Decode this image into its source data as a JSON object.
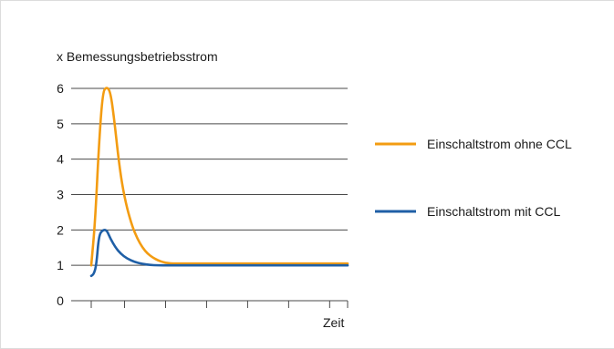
{
  "chart_data": {
    "type": "line",
    "title": "",
    "ylabel": "x Bemessungsbetriebsstrom",
    "xlabel": "Zeit",
    "ylim": [
      0,
      6.2
    ],
    "xlim": [
      0,
      10
    ],
    "y_ticks": [
      0,
      1,
      2,
      3,
      4,
      5,
      6
    ],
    "x_tick_positions": [
      0,
      1.3,
      2.9,
      4.5,
      6.1,
      7.7,
      9.3,
      10
    ],
    "grid": "horizontal",
    "legend_placement": "right",
    "series": [
      {
        "name": "Einschaltstrom ohne CCL",
        "color": "#f39c12",
        "x": [
          0,
          0.15,
          0.3,
          0.45,
          0.6,
          0.75,
          0.9,
          1.05,
          1.2,
          1.4,
          1.6,
          1.8,
          2.0,
          2.2,
          2.4,
          2.6,
          2.8,
          3.0,
          3.2,
          3.4,
          3.6,
          4.0,
          10
        ],
        "y": [
          1.0,
          2.2,
          4.4,
          5.9,
          6.05,
          5.9,
          5.1,
          4.1,
          3.3,
          2.6,
          2.1,
          1.75,
          1.5,
          1.33,
          1.22,
          1.14,
          1.09,
          1.06,
          1.05,
          1.05,
          1.05,
          1.05,
          1.05
        ]
      },
      {
        "name": "Einschaltstrom mit CCL",
        "color": "#1f5fa6",
        "x": [
          0,
          0.1,
          0.2,
          0.3,
          0.45,
          0.6,
          0.75,
          0.95,
          1.15,
          1.4,
          1.7,
          2.0,
          2.3,
          2.6,
          3.0,
          10
        ],
        "y": [
          0.7,
          0.75,
          1.0,
          1.85,
          2.0,
          2.0,
          1.75,
          1.5,
          1.33,
          1.19,
          1.09,
          1.04,
          1.01,
          1.0,
          1.0,
          1.0
        ]
      }
    ]
  }
}
